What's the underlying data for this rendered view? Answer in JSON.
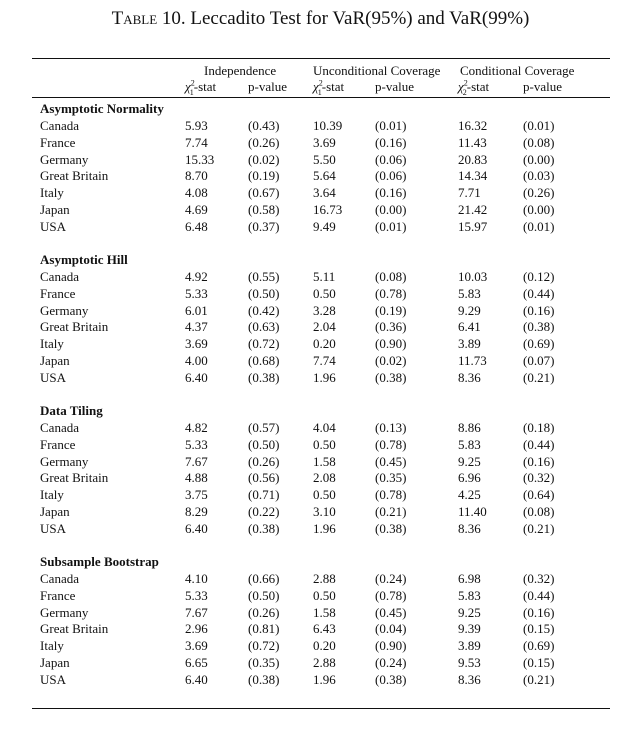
{
  "title": {
    "label": "Table 10.",
    "text": "Leccadito Test for VaR(95%) and VaR(99%)"
  },
  "header": {
    "groups": [
      "Independence",
      "Unconditional Coverage",
      "Conditional Coverage"
    ],
    "columns": [
      {
        "sym": "χ",
        "sub": "1",
        "sup": "2",
        "rest": "-stat"
      },
      {
        "text": "p-value"
      },
      {
        "sym": "χ",
        "sub": "1",
        "sup": "2",
        "rest": "-stat"
      },
      {
        "text": "p-value"
      },
      {
        "sym": "χ",
        "sub": "2",
        "sup": "2",
        "rest": "-stat"
      },
      {
        "text": "p-value"
      }
    ]
  },
  "sections": [
    {
      "name": "Asymptotic Normality",
      "rows": [
        [
          "Canada",
          "5.93",
          "(0.43)",
          "10.39",
          "(0.01)",
          "16.32",
          "(0.01)"
        ],
        [
          "France",
          "7.74",
          "(0.26)",
          "3.69",
          "(0.16)",
          "11.43",
          "(0.08)"
        ],
        [
          "Germany",
          "15.33",
          "(0.02)",
          "5.50",
          "(0.06)",
          "20.83",
          "(0.00)"
        ],
        [
          "Great Britain",
          "8.70",
          "(0.19)",
          "5.64",
          "(0.06)",
          "14.34",
          "(0.03)"
        ],
        [
          "Italy",
          "4.08",
          "(0.67)",
          "3.64",
          "(0.16)",
          "7.71",
          "(0.26)"
        ],
        [
          "Japan",
          "4.69",
          "(0.58)",
          "16.73",
          "(0.00)",
          "21.42",
          "(0.00)"
        ],
        [
          "USA",
          "6.48",
          "(0.37)",
          "9.49",
          "(0.01)",
          "15.97",
          "(0.01)"
        ]
      ]
    },
    {
      "name": "Asymptotic Hill",
      "rows": [
        [
          "Canada",
          "4.92",
          "(0.55)",
          "5.11",
          "(0.08)",
          "10.03",
          "(0.12)"
        ],
        [
          "France",
          "5.33",
          "(0.50)",
          "0.50",
          "(0.78)",
          "5.83",
          "(0.44)"
        ],
        [
          "Germany",
          "6.01",
          "(0.42)",
          "3.28",
          "(0.19)",
          "9.29",
          "(0.16)"
        ],
        [
          "Great Britain",
          "4.37",
          "(0.63)",
          "2.04",
          "(0.36)",
          "6.41",
          "(0.38)"
        ],
        [
          "Italy",
          "3.69",
          "(0.72)",
          "0.20",
          "(0.90)",
          "3.89",
          "(0.69)"
        ],
        [
          "Japan",
          "4.00",
          "(0.68)",
          "7.74",
          "(0.02)",
          "11.73",
          "(0.07)"
        ],
        [
          "USA",
          "6.40",
          "(0.38)",
          "1.96",
          "(0.38)",
          "8.36",
          "(0.21)"
        ]
      ]
    },
    {
      "name": "Data Tiling",
      "rows": [
        [
          "Canada",
          "4.82",
          "(0.57)",
          "4.04",
          "(0.13)",
          "8.86",
          "(0.18)"
        ],
        [
          "France",
          "5.33",
          "(0.50)",
          "0.50",
          "(0.78)",
          "5.83",
          "(0.44)"
        ],
        [
          "Germany",
          "7.67",
          "(0.26)",
          "1.58",
          "(0.45)",
          "9.25",
          "(0.16)"
        ],
        [
          "Great Britain",
          "4.88",
          "(0.56)",
          "2.08",
          "(0.35)",
          "6.96",
          "(0.32)"
        ],
        [
          "Italy",
          "3.75",
          "(0.71)",
          "0.50",
          "(0.78)",
          "4.25",
          "(0.64)"
        ],
        [
          "Japan",
          "8.29",
          "(0.22)",
          "3.10",
          "(0.21)",
          "11.40",
          "(0.08)"
        ],
        [
          "USA",
          "6.40",
          "(0.38)",
          "1.96",
          "(0.38)",
          "8.36",
          "(0.21)"
        ]
      ]
    },
    {
      "name": "Subsample Bootstrap",
      "rows": [
        [
          "Canada",
          "4.10",
          "(0.66)",
          "2.88",
          "(0.24)",
          "6.98",
          "(0.32)"
        ],
        [
          "France",
          "5.33",
          "(0.50)",
          "0.50",
          "(0.78)",
          "5.83",
          "(0.44)"
        ],
        [
          "Germany",
          "7.67",
          "(0.26)",
          "1.58",
          "(0.45)",
          "9.25",
          "(0.16)"
        ],
        [
          "Great Britain",
          "2.96",
          "(0.81)",
          "6.43",
          "(0.04)",
          "9.39",
          "(0.15)"
        ],
        [
          "Italy",
          "3.69",
          "(0.72)",
          "0.20",
          "(0.90)",
          "3.89",
          "(0.69)"
        ],
        [
          "Japan",
          "6.65",
          "(0.35)",
          "2.88",
          "(0.24)",
          "9.53",
          "(0.15)"
        ],
        [
          "USA",
          "6.40",
          "(0.38)",
          "1.96",
          "(0.38)",
          "8.36",
          "(0.21)"
        ]
      ]
    }
  ]
}
